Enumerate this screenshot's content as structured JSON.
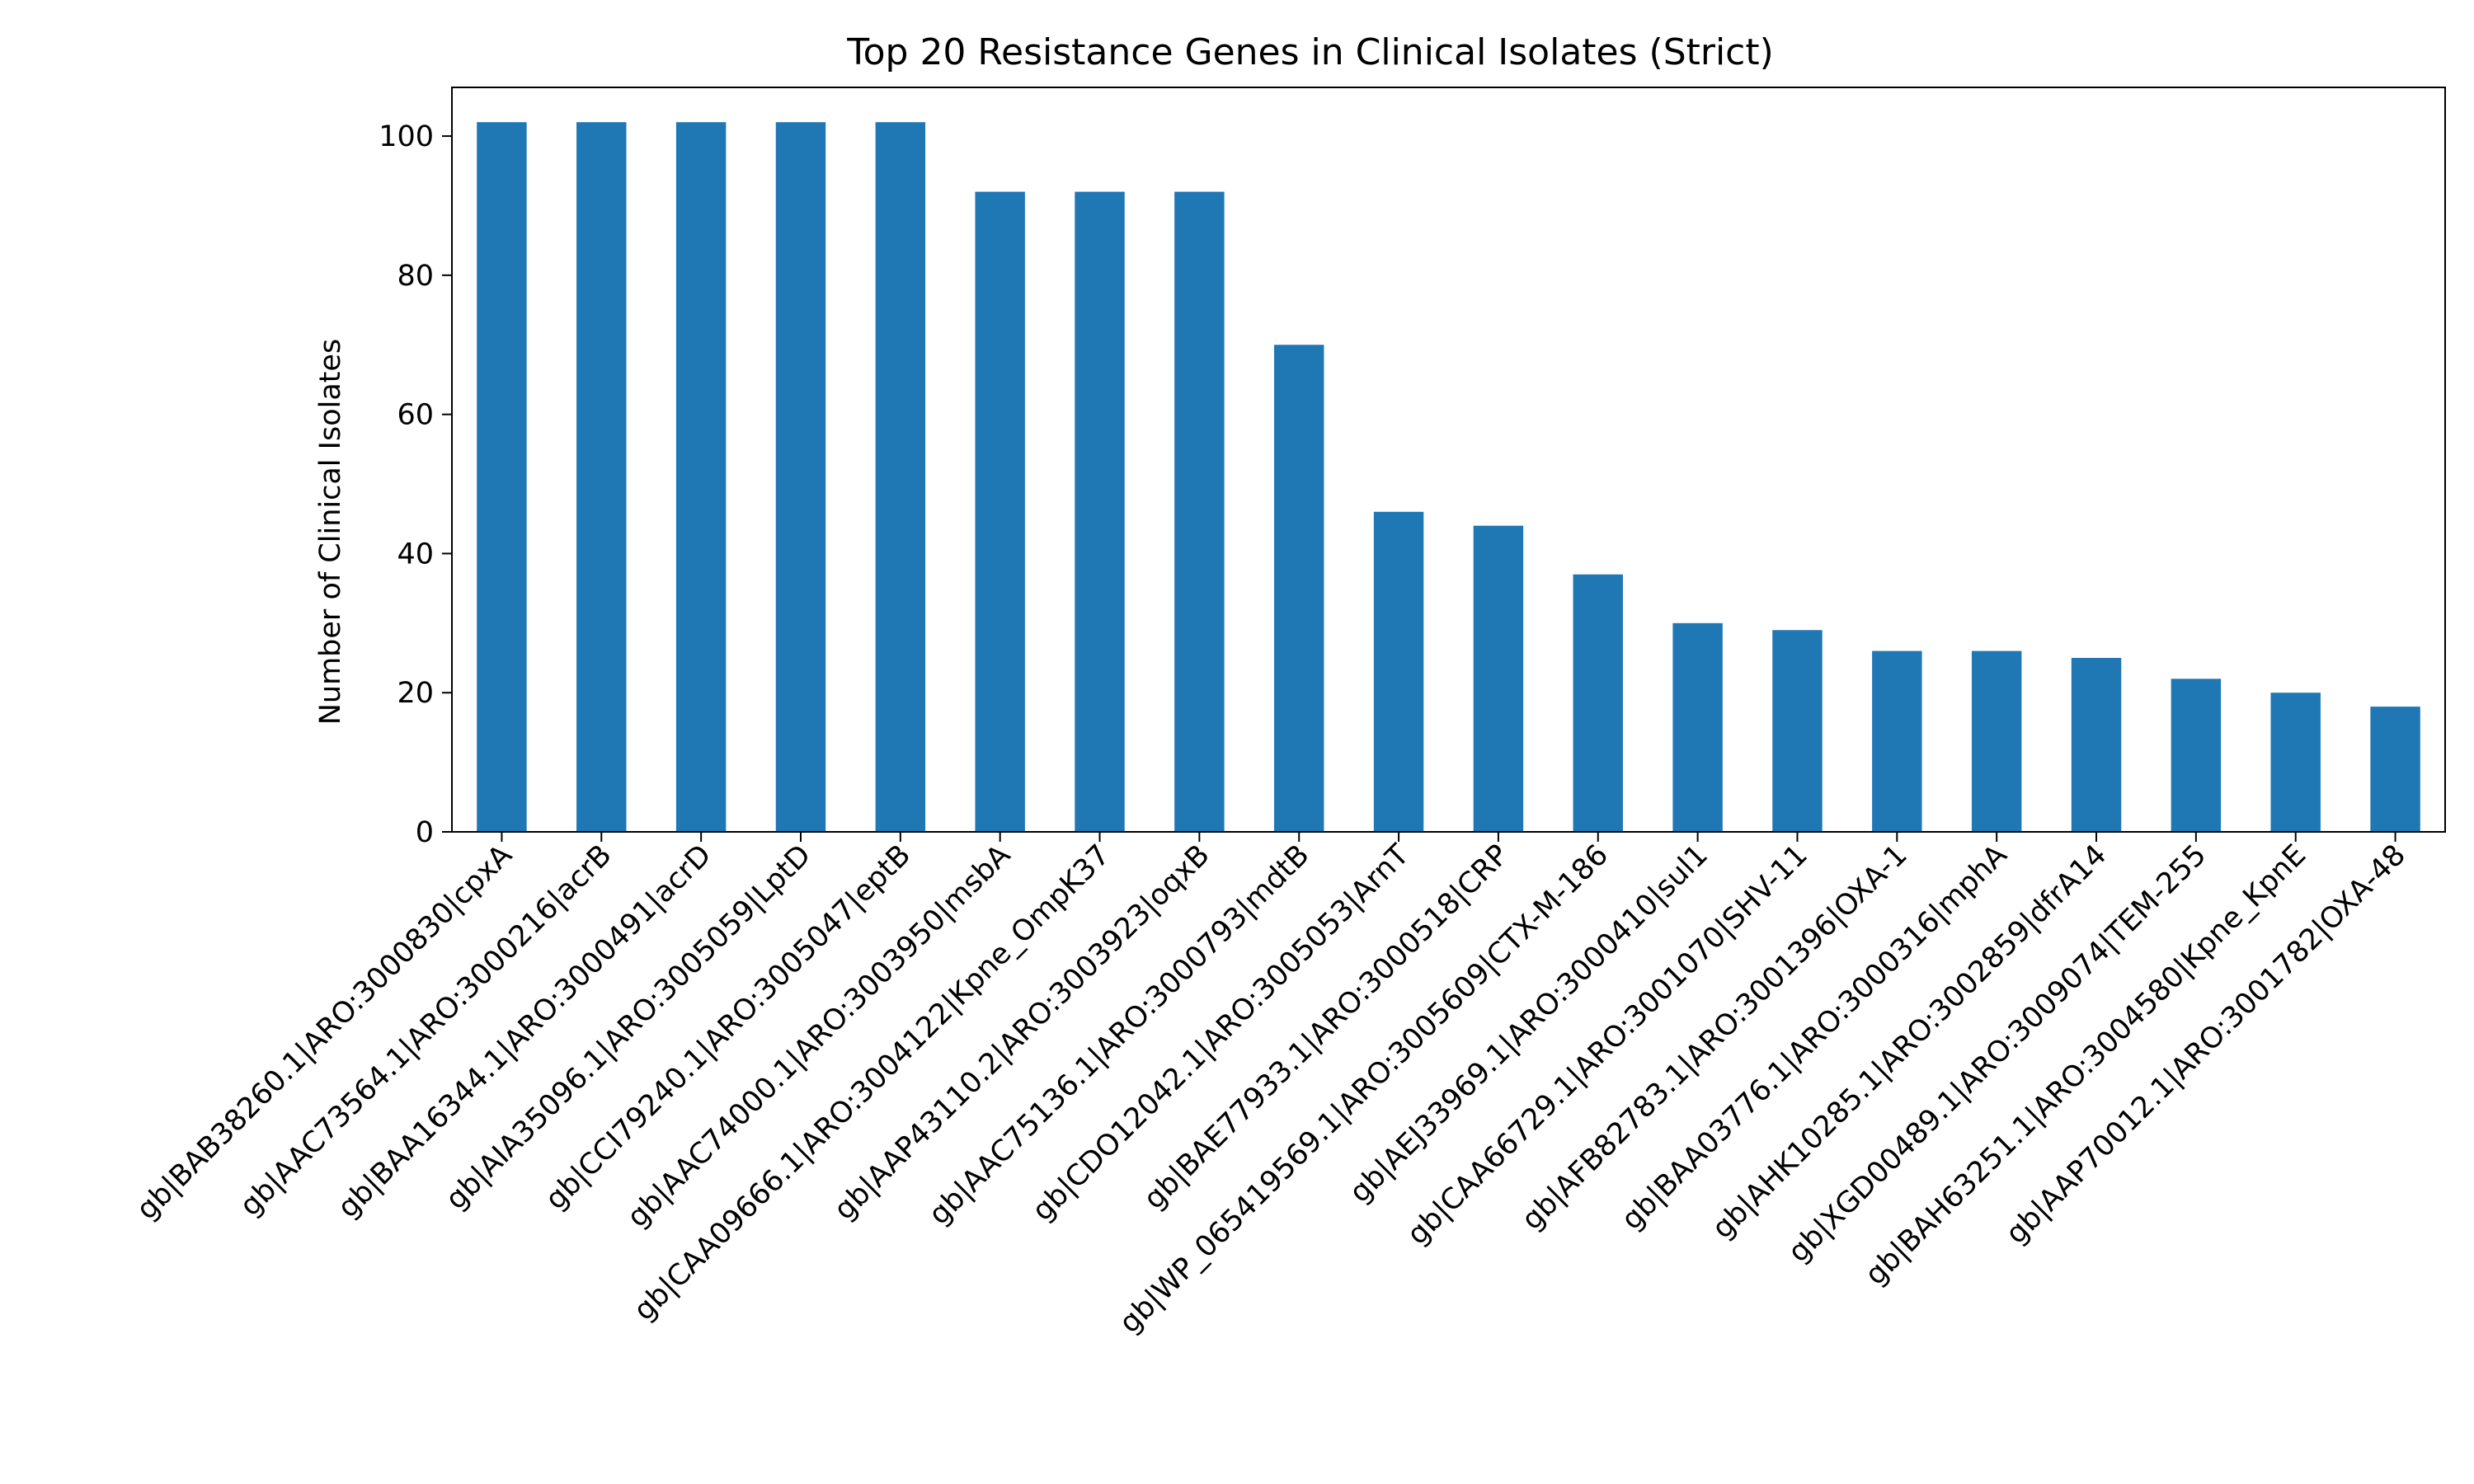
{
  "chart_data": {
    "type": "bar",
    "title": "Top 20 Resistance Genes in Clinical Isolates (Strict)",
    "xlabel": "",
    "ylabel": "Number of Clinical Isolates",
    "ylim": [
      0,
      107
    ],
    "yticks": [
      0,
      20,
      40,
      60,
      80,
      100
    ],
    "grid": false,
    "bar_color": "#1f77b4",
    "categories": [
      "gb|BAB38260.1|ARO:3000830|cpxA",
      "gb|AAC73564.1|ARO:3000216|acrB",
      "gb|BAA16344.1|ARO:3000491|acrD",
      "gb|AIA35096.1|ARO:3005059|LptD",
      "gb|CCI79240.1|ARO:3005047|eptB",
      "gb|AAC74000.1|ARO:3003950|msbA",
      "gb|CAA09666.1|ARO:3004122|Kpne_OmpK37",
      "gb|AAP43110.2|ARO:3003923|oqxB",
      "gb|AAC75136.1|ARO:3000793|mdtB",
      "gb|CDO12042.1|ARO:3005053|ArnT",
      "gb|BAE77933.1|ARO:3000518|CRP",
      "gb|WP_065419569.1|ARO:3005609|CTX-M-186",
      "gb|AEJ33969.1|ARO:3000410|sul1",
      "gb|CAA66729.1|ARO:3001070|SHV-11",
      "gb|AFB82783.1|ARO:3001396|OXA-1",
      "gb|BAA03776.1|ARO:3000316|mphA",
      "gb|AHK10285.1|ARO:3002859|dfrA14",
      "gb|XGD00489.1|ARO:3009074|TEM-255",
      "gb|BAH63251.1|ARO:3004580|Kpne_KpnE",
      "gb|AAP70012.1|ARO:3001782|OXA-48"
    ],
    "values": [
      102,
      102,
      102,
      102,
      102,
      92,
      92,
      92,
      70,
      46,
      44,
      37,
      30,
      29,
      26,
      26,
      25,
      22,
      20,
      18
    ]
  }
}
